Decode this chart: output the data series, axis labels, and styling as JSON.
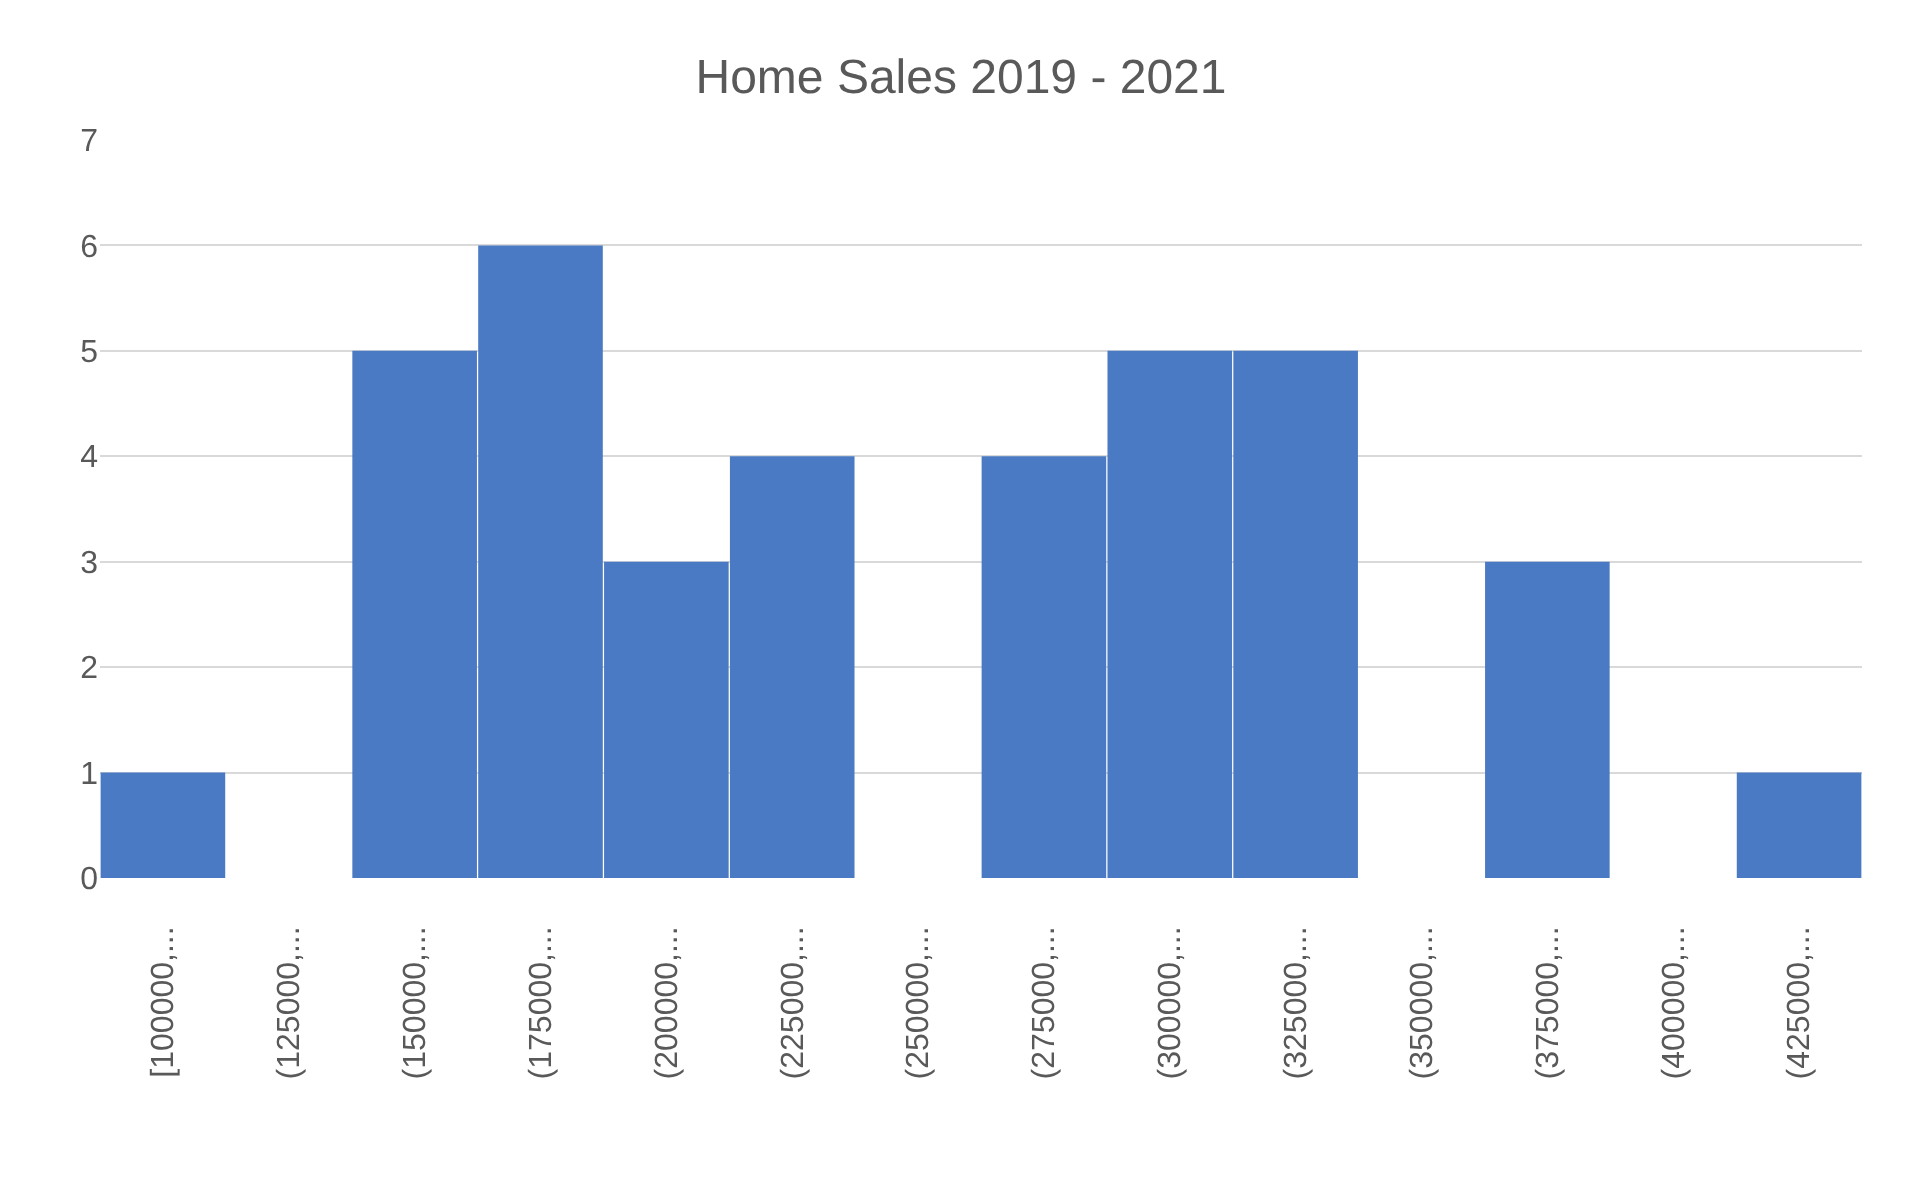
{
  "chart_data": {
    "type": "bar",
    "title": "Home Sales 2019 - 2021",
    "categories": [
      "[100000,...",
      "(125000,...",
      "(150000,...",
      "(175000,...",
      "(200000,...",
      "(225000,...",
      "(250000,...",
      "(275000,...",
      "(300000,...",
      "(325000,...",
      "(350000,...",
      "(375000,...",
      "(400000,...",
      "(425000,..."
    ],
    "values": [
      1,
      0,
      5,
      6,
      3,
      4,
      0,
      4,
      5,
      5,
      0,
      3,
      0,
      1
    ],
    "color": "#4a7ac4",
    "ylim": [
      0,
      7
    ],
    "yticks": [
      0,
      1,
      2,
      3,
      4,
      5,
      6,
      7
    ],
    "grid": "y"
  }
}
